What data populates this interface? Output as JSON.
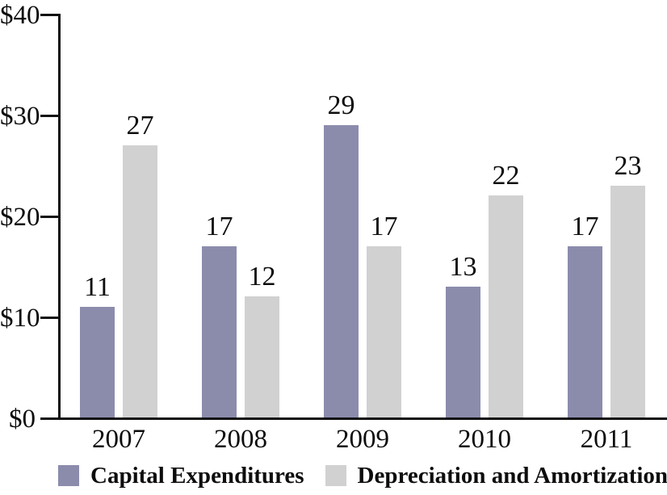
{
  "chart_data": {
    "type": "bar",
    "title": "",
    "xlabel": "",
    "ylabel": "",
    "categories": [
      "2007",
      "2008",
      "2009",
      "2010",
      "2011"
    ],
    "series": [
      {
        "name": "Capital Expenditures",
        "color": "#8b8cac",
        "values": [
          11,
          17,
          29,
          13,
          17
        ]
      },
      {
        "name": "Depreciation and Amortization",
        "color": "#d1d1d1",
        "values": [
          27,
          12,
          17,
          22,
          23
        ]
      }
    ],
    "ylim": [
      0,
      40
    ],
    "ytick_values": [
      0,
      10,
      20,
      30,
      40
    ],
    "ytick_labels": [
      "$0",
      "$10",
      "$20",
      "$30",
      "$40"
    ],
    "grid": false,
    "value_labels": true,
    "legend_position": "bottom",
    "axis_color": "#111111",
    "text_color": "#0d0d0d",
    "background_color": "#ffffff"
  }
}
